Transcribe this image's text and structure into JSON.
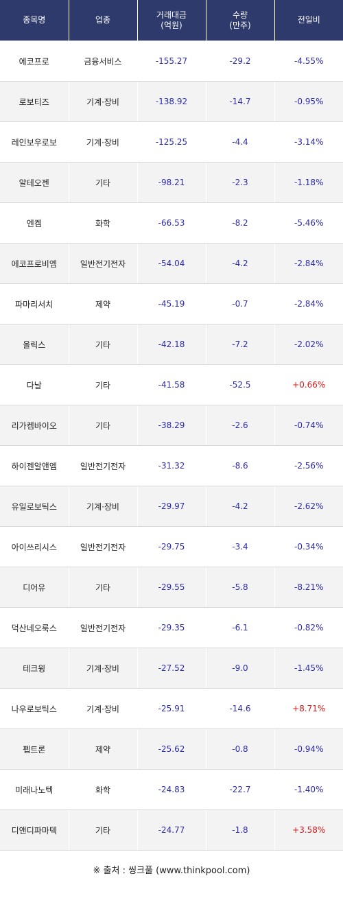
{
  "headers": {
    "name": "종목명",
    "sector": "업종",
    "amount_line1": "거래대금",
    "amount_line2": "(억원)",
    "volume_line1": "수량",
    "volume_line2": "(만주)",
    "change": "전일비"
  },
  "rows": [
    {
      "name": "에코프로",
      "sector": "금융서비스",
      "amount": "-155.27",
      "volume": "-29.2",
      "change": "-4.55%",
      "dir": "neg"
    },
    {
      "name": "로보티즈",
      "sector": "기계·장비",
      "amount": "-138.92",
      "volume": "-14.7",
      "change": "-0.95%",
      "dir": "neg"
    },
    {
      "name": "레인보우로보",
      "sector": "기계·장비",
      "amount": "-125.25",
      "volume": "-4.4",
      "change": "-3.14%",
      "dir": "neg"
    },
    {
      "name": "알테오젠",
      "sector": "기타",
      "amount": "-98.21",
      "volume": "-2.3",
      "change": "-1.18%",
      "dir": "neg"
    },
    {
      "name": "엔켐",
      "sector": "화학",
      "amount": "-66.53",
      "volume": "-8.2",
      "change": "-5.46%",
      "dir": "neg"
    },
    {
      "name": "에코프로비엠",
      "sector": "일반전기전자",
      "amount": "-54.04",
      "volume": "-4.2",
      "change": "-2.84%",
      "dir": "neg"
    },
    {
      "name": "파마리서치",
      "sector": "제약",
      "amount": "-45.19",
      "volume": "-0.7",
      "change": "-2.84%",
      "dir": "neg"
    },
    {
      "name": "올릭스",
      "sector": "기타",
      "amount": "-42.18",
      "volume": "-7.2",
      "change": "-2.02%",
      "dir": "neg"
    },
    {
      "name": "다날",
      "sector": "기타",
      "amount": "-41.58",
      "volume": "-52.5",
      "change": "+0.66%",
      "dir": "pos"
    },
    {
      "name": "리가켐바이오",
      "sector": "기타",
      "amount": "-38.29",
      "volume": "-2.6",
      "change": "-0.74%",
      "dir": "neg"
    },
    {
      "name": "하이젠알앤엠",
      "sector": "일반전기전자",
      "amount": "-31.32",
      "volume": "-8.6",
      "change": "-2.56%",
      "dir": "neg"
    },
    {
      "name": "유일로보틱스",
      "sector": "기계·장비",
      "amount": "-29.97",
      "volume": "-4.2",
      "change": "-2.62%",
      "dir": "neg"
    },
    {
      "name": "아이쓰리시스",
      "sector": "일반전기전자",
      "amount": "-29.75",
      "volume": "-3.4",
      "change": "-0.34%",
      "dir": "neg"
    },
    {
      "name": "디어유",
      "sector": "기타",
      "amount": "-29.55",
      "volume": "-5.8",
      "change": "-8.21%",
      "dir": "neg"
    },
    {
      "name": "덕산네오룩스",
      "sector": "일반전기전자",
      "amount": "-29.35",
      "volume": "-6.1",
      "change": "-0.82%",
      "dir": "neg"
    },
    {
      "name": "테크윙",
      "sector": "기계·장비",
      "amount": "-27.52",
      "volume": "-9.0",
      "change": "-1.45%",
      "dir": "neg"
    },
    {
      "name": "나우로보틱스",
      "sector": "기계·장비",
      "amount": "-25.91",
      "volume": "-14.6",
      "change": "+8.71%",
      "dir": "pos"
    },
    {
      "name": "펩트론",
      "sector": "제약",
      "amount": "-25.62",
      "volume": "-0.8",
      "change": "-0.94%",
      "dir": "neg"
    },
    {
      "name": "미래나노텍",
      "sector": "화학",
      "amount": "-24.83",
      "volume": "-22.7",
      "change": "-1.40%",
      "dir": "neg"
    },
    {
      "name": "디앤디파마텍",
      "sector": "기타",
      "amount": "-24.77",
      "volume": "-1.8",
      "change": "+3.58%",
      "dir": "pos"
    }
  ],
  "source": "※ 출처 : 씽크풀 (www.thinkpool.com)",
  "colors": {
    "header_bg": "#2d3a6b",
    "negative": "#2b2bb0",
    "positive": "#d11a1a",
    "row_alt": "#f3f3f3"
  }
}
